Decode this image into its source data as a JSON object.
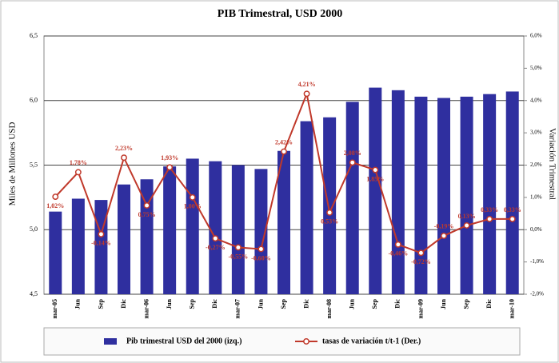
{
  "chart_data": {
    "type": "bar_line",
    "title": "PIB Trimestral, USD 2000",
    "y_label": "Miles de Millones USD",
    "y2_label": "Variación Trimestral",
    "categories": [
      "mar-05",
      "Jun",
      "Sep",
      "Dic",
      "mar-06",
      "Jun",
      "Sep",
      "Dic",
      "mar-07",
      "Jun",
      "Sep",
      "Dic",
      "mar-08",
      "Jun",
      "Sep",
      "Dic",
      "mar-09",
      "Jun",
      "Sep",
      "Dic",
      "mar-10"
    ],
    "series": [
      {
        "name": "Pib trimestral USD del 2000 (izq.)",
        "color": "#2f2f9f",
        "kind": "bar",
        "values": [
          5.14,
          5.24,
          5.23,
          5.35,
          5.39,
          5.49,
          5.55,
          5.53,
          5.5,
          5.47,
          5.61,
          5.84,
          5.87,
          5.99,
          6.1,
          6.08,
          6.03,
          6.02,
          6.03,
          6.05,
          6.07
        ]
      },
      {
        "name": "tasas de variación t/t-1 (Der.)",
        "color": "#c0392b",
        "kind": "line",
        "axis": "y2",
        "values": [
          1.02,
          1.78,
          -0.14,
          2.23,
          0.75,
          1.93,
          1.0,
          -0.27,
          -0.55,
          -0.6,
          2.42,
          4.21,
          0.53,
          2.08,
          1.85,
          -0.46,
          -0.72,
          -0.19,
          0.13,
          0.33,
          0.33
        ],
        "value_labels": [
          "1,02%",
          "1,78%",
          "-0,14%",
          "2,23%",
          "0,75%",
          "1,93%",
          "1,00%",
          "-0,27%",
          "-0,55%",
          "-0,60%",
          "2,42%",
          "4,21%",
          "0,53%",
          "2,08%",
          "1,85%",
          "-0,46%",
          "-0,72%",
          "-0,19%",
          "0,13%",
          "0,33%",
          "0,33%"
        ]
      }
    ],
    "ylim": [
      4.5,
      6.5
    ],
    "yticks": [
      {
        "value": 4.5,
        "label": "4,5"
      },
      {
        "value": 5.0,
        "label": "5,0"
      },
      {
        "value": 5.5,
        "label": "5,5"
      },
      {
        "value": 6.0,
        "label": "6,0"
      },
      {
        "value": 6.5,
        "label": "6,5"
      }
    ],
    "y2lim": [
      -2,
      6
    ],
    "y2ticks": [
      {
        "value": -2,
        "label": "-2,0%"
      },
      {
        "value": -1,
        "label": "-1,0%"
      },
      {
        "value": 0,
        "label": "0,0%"
      },
      {
        "value": 1,
        "label": "1,0%"
      },
      {
        "value": 2,
        "label": "2,0%"
      },
      {
        "value": 3,
        "label": "3,0%"
      },
      {
        "value": 4,
        "label": "4,0%"
      },
      {
        "value": 5,
        "label": "5,0%"
      },
      {
        "value": 6,
        "label": "6,0%"
      }
    ],
    "grid": true
  }
}
